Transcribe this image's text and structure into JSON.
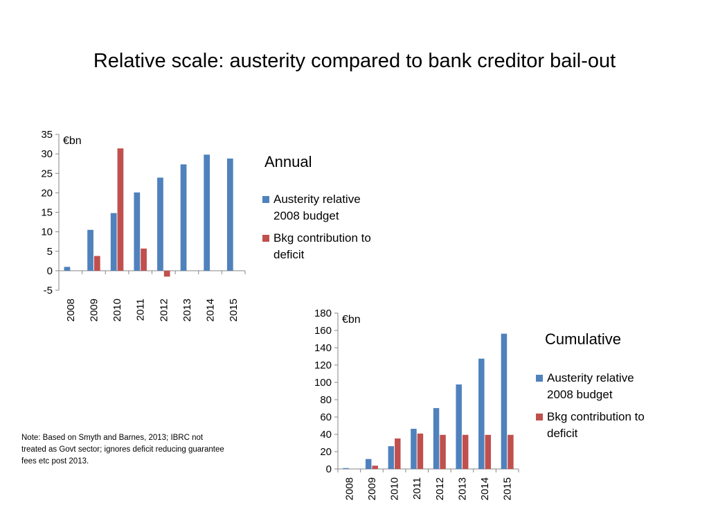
{
  "slide": {
    "title": "Relative scale: austerity compared to bank creditor bail-out",
    "note": "Note: Based on Smyth and Barnes, 2013; IBRC not treated as Govt sector; ignores deficit reducing guarantee fees etc post 2013."
  },
  "colors": {
    "series1": "#4F81BD",
    "series2": "#C0504D",
    "axis": "#868686"
  },
  "chart_data": [
    {
      "type": "bar",
      "title": "Annual",
      "unit_label": "€bn",
      "categories": [
        "2008",
        "2009",
        "2010",
        "2011",
        "2012",
        "2013",
        "2014",
        "2015"
      ],
      "ylim": [
        -5,
        35
      ],
      "yticks": [
        -5,
        0,
        5,
        10,
        15,
        20,
        25,
        30,
        35
      ],
      "grid": false,
      "legend": "right",
      "series": [
        {
          "name": "Austerity relative 2008 budget",
          "values": [
            1,
            10.5,
            14.8,
            20.1,
            23.9,
            27.3,
            29.8,
            28.8
          ]
        },
        {
          "name": "Bkg contribution to deficit",
          "values": [
            0,
            3.8,
            31.4,
            5.7,
            -1.5,
            0,
            0,
            0
          ]
        }
      ]
    },
    {
      "type": "bar",
      "title": "Cumulative",
      "unit_label": "€bn",
      "categories": [
        "2008",
        "2009",
        "2010",
        "2011",
        "2012",
        "2013",
        "2014",
        "2015"
      ],
      "ylim": [
        0,
        180
      ],
      "yticks": [
        0,
        20,
        40,
        60,
        80,
        100,
        120,
        140,
        160,
        180
      ],
      "grid": false,
      "legend": "right",
      "series": [
        {
          "name": "Austerity relative 2008 budget",
          "values": [
            1,
            11.5,
            26.3,
            46.4,
            70.3,
            97.6,
            127.4,
            156.2
          ]
        },
        {
          "name": "Bkg contribution to deficit",
          "values": [
            0,
            3.8,
            35.2,
            40.9,
            39.4,
            39.4,
            39.4,
            39.4
          ]
        }
      ]
    }
  ]
}
